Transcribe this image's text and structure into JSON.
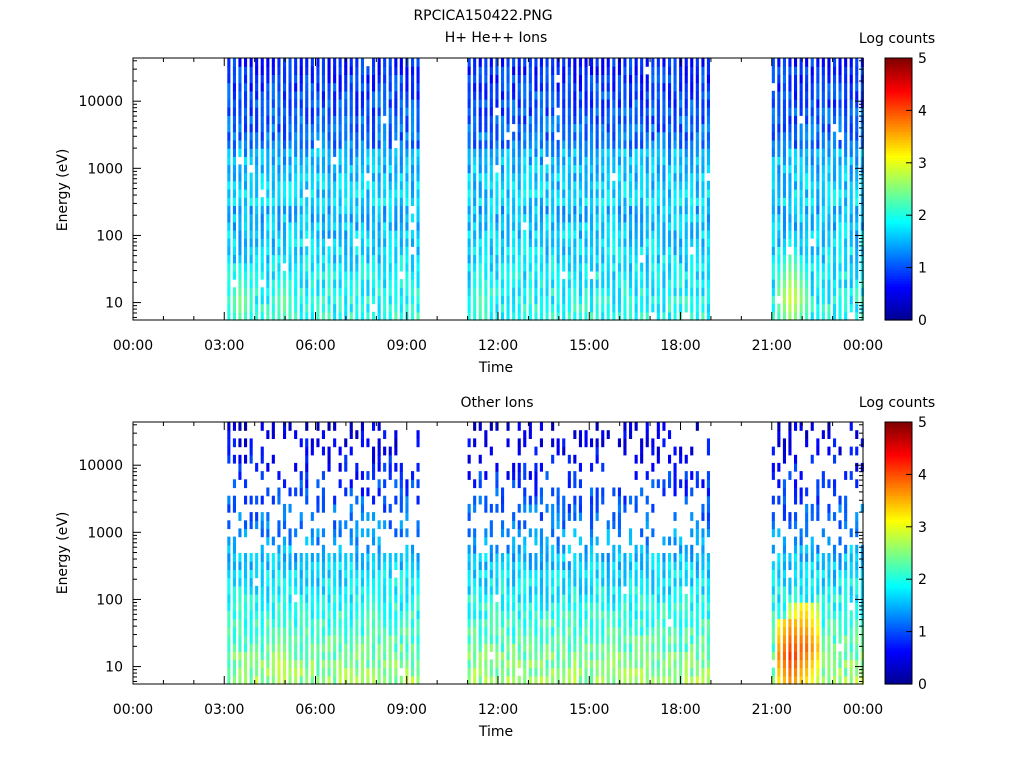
{
  "figure_title": "RPCICA150422.PNG",
  "colorbar_label": "Log counts",
  "colorbar_ticks": [
    "0",
    "1",
    "2",
    "3",
    "4",
    "5"
  ],
  "colormap": [
    "#00008f",
    "#0000ff",
    "#0080ff",
    "#00ffff",
    "#80ff80",
    "#ffff00",
    "#ff8000",
    "#ff0000",
    "#800000"
  ],
  "chart_data": [
    {
      "type": "heatmap",
      "title": "H+ He++ Ions",
      "xlabel": "Time",
      "ylabel": "Energy (eV)",
      "x_ticks": [
        "00:00",
        "03:00",
        "06:00",
        "09:00",
        "12:00",
        "15:00",
        "18:00",
        "21:00",
        "00:00"
      ],
      "x_range_hours": [
        0,
        24
      ],
      "y_ticks": [
        "10",
        "100",
        "1000",
        "10000"
      ],
      "y_range": [
        5.5,
        44000
      ],
      "y_scale": "log",
      "z_label": "Log counts",
      "z_range": [
        0,
        5
      ],
      "data_intervals_hours": [
        [
          3.1,
          9.4
        ],
        [
          11.0,
          18.9
        ],
        [
          21.0,
          24.0
        ]
      ],
      "typical_log_counts": {
        "high_energy": 0.8,
        "low_energy": 2.0
      },
      "low_energy_hotspots": [
        {
          "time": 3.5,
          "energy": 10,
          "log_counts": 2.6
        },
        {
          "time": 4.9,
          "energy": 10,
          "log_counts": 2.5
        },
        {
          "time": 11.4,
          "energy": 10,
          "log_counts": 2.4
        },
        {
          "time": 21.6,
          "energy": 12,
          "log_counts": 3.0
        }
      ]
    },
    {
      "type": "heatmap",
      "title": "Other Ions",
      "xlabel": "Time",
      "ylabel": "Energy (eV)",
      "x_ticks": [
        "00:00",
        "03:00",
        "06:00",
        "09:00",
        "12:00",
        "15:00",
        "18:00",
        "21:00",
        "00:00"
      ],
      "x_range_hours": [
        0,
        24
      ],
      "y_ticks": [
        "10",
        "100",
        "1000",
        "10000"
      ],
      "y_range": [
        5.5,
        44000
      ],
      "y_scale": "log",
      "z_label": "Log counts",
      "z_range": [
        0,
        5
      ],
      "data_intervals_hours": [
        [
          3.1,
          9.4
        ],
        [
          11.0,
          18.9
        ],
        [
          21.0,
          24.0
        ]
      ],
      "typical_log_counts": {
        "high_energy": 0.4,
        "low_energy": 2.6
      },
      "low_energy_hotspots": [
        {
          "time": 4.8,
          "energy": 10,
          "log_counts": 3.0
        },
        {
          "time": 7.8,
          "energy": 60,
          "log_counts": 2.4
        },
        {
          "time": 15.7,
          "energy": 12,
          "log_counts": 2.8
        },
        {
          "time": 21.6,
          "energy": 15,
          "log_counts": 4.2
        },
        {
          "time": 22.0,
          "energy": 20,
          "log_counts": 4.0
        }
      ]
    }
  ]
}
